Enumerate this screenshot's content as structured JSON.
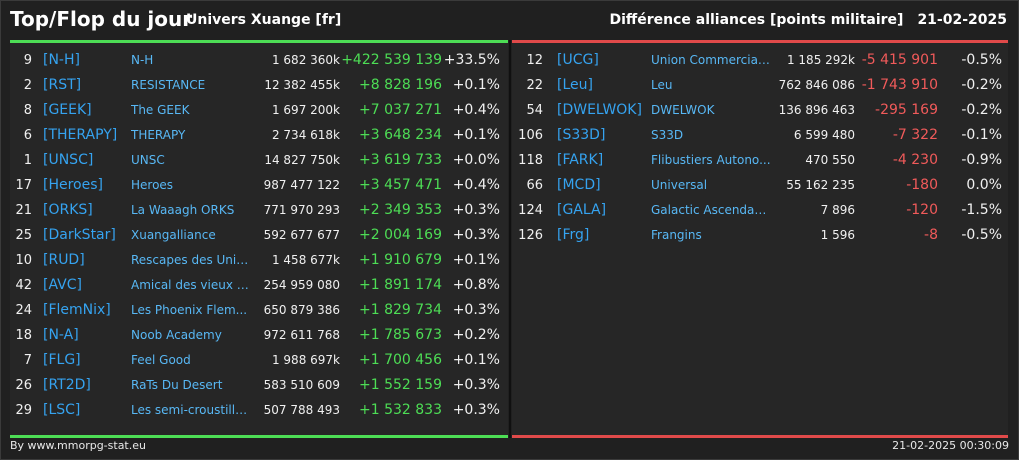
{
  "header": {
    "title": "Top/Flop du jour",
    "universe": "Univers Xuange [fr]",
    "subject": "Différence alliances [points militaire]",
    "date": "21-02-2025"
  },
  "top": [
    {
      "rank": "9",
      "tag": "[N-H]",
      "name": "N-H",
      "points": "1 682 360k",
      "diff": "+422 539 139",
      "pct": "+33.5%"
    },
    {
      "rank": "2",
      "tag": "[RST]",
      "name": "RESISTANCE",
      "points": "12 382 455k",
      "diff": "+8 828 196",
      "pct": "+0.1%"
    },
    {
      "rank": "8",
      "tag": "[GEEK]",
      "name": "The GEEK",
      "points": "1 697 200k",
      "diff": "+7 037 271",
      "pct": "+0.4%"
    },
    {
      "rank": "6",
      "tag": "[THERAPY]",
      "name": "THERAPY",
      "points": "2 734 618k",
      "diff": "+3 648 234",
      "pct": "+0.1%"
    },
    {
      "rank": "1",
      "tag": "[UNSC]",
      "name": "UNSC",
      "points": "14 827 750k",
      "diff": "+3 619 733",
      "pct": "+0.0%"
    },
    {
      "rank": "17",
      "tag": "[Heroes]",
      "name": "Heroes",
      "points": "987 477 122",
      "diff": "+3 457 471",
      "pct": "+0.4%"
    },
    {
      "rank": "21",
      "tag": "[ORKS]",
      "name": "La Waaagh ORKS",
      "points": "771 970 293",
      "diff": "+2 349 353",
      "pct": "+0.3%"
    },
    {
      "rank": "25",
      "tag": "[DarkStar]",
      "name": "Xuangalliance",
      "points": "592 677 677",
      "diff": "+2 004 169",
      "pct": "+0.3%"
    },
    {
      "rank": "10",
      "tag": "[RUD]",
      "name": "Rescapes des Univ...",
      "points": "1 458 677k",
      "diff": "+1 910 679",
      "pct": "+0.1%"
    },
    {
      "rank": "42",
      "tag": "[AVC]",
      "name": "Amical des vieux co...",
      "points": "254 959 080",
      "diff": "+1 891 174",
      "pct": "+0.8%"
    },
    {
      "rank": "24",
      "tag": "[FlemNix]",
      "name": "Les Phoenix Flem...",
      "points": "650 879 386",
      "diff": "+1 829 734",
      "pct": "+0.3%"
    },
    {
      "rank": "18",
      "tag": "[N-A]",
      "name": "Noob Academy",
      "points": "972 611 768",
      "diff": "+1 785 673",
      "pct": "+0.2%"
    },
    {
      "rank": "7",
      "tag": "[FLG]",
      "name": "Feel Good",
      "points": "1 988 697k",
      "diff": "+1 700 456",
      "pct": "+0.1%"
    },
    {
      "rank": "26",
      "tag": "[RT2D]",
      "name": "RaTs Du Desert",
      "points": "583 510 609",
      "diff": "+1 552 159",
      "pct": "+0.3%"
    },
    {
      "rank": "29",
      "tag": "[LSC]",
      "name": "Les semi-croustilla...",
      "points": "507 788 493",
      "diff": "+1 532 833",
      "pct": "+0.3%"
    }
  ],
  "flop": [
    {
      "rank": "12",
      "tag": "[UCG]",
      "name": "Union Commerciale...",
      "points": "1 185 292k",
      "diff": "-5 415 901",
      "pct": "-0.5%"
    },
    {
      "rank": "22",
      "tag": "[Leu]",
      "name": "Leu",
      "points": "762 846 086",
      "diff": "-1 743 910",
      "pct": "-0.2%"
    },
    {
      "rank": "54",
      "tag": "[DWELWOK]",
      "name": "DWELWOK",
      "points": "136 896 463",
      "diff": "-295 169",
      "pct": "-0.2%"
    },
    {
      "rank": "106",
      "tag": "[S33D]",
      "name": "S33D",
      "points": "6 599 480",
      "diff": "-7 322",
      "pct": "-0.1%"
    },
    {
      "rank": "118",
      "tag": "[FARK]",
      "name": "Flibustiers Autono...",
      "points": "470 550",
      "diff": "-4 230",
      "pct": "-0.9%"
    },
    {
      "rank": "66",
      "tag": "[MCD]",
      "name": "Universal",
      "points": "55 162 235",
      "diff": "-180",
      "pct": "0.0%"
    },
    {
      "rank": "124",
      "tag": "[GALA]",
      "name": "Galactic Ascendanc...",
      "points": "7 896",
      "diff": "-120",
      "pct": "-1.5%"
    },
    {
      "rank": "126",
      "tag": "[Frg]",
      "name": "Frangins",
      "points": "1 596",
      "diff": "-8",
      "pct": "-0.5%"
    }
  ],
  "footer": {
    "credit": "By www.mmorpg-stat.eu",
    "timestamp": "21-02-2025 00:30:09"
  },
  "colors": {
    "positive": "#4ddd55",
    "negative": "#f05a5a",
    "link": "#35a3f0"
  }
}
